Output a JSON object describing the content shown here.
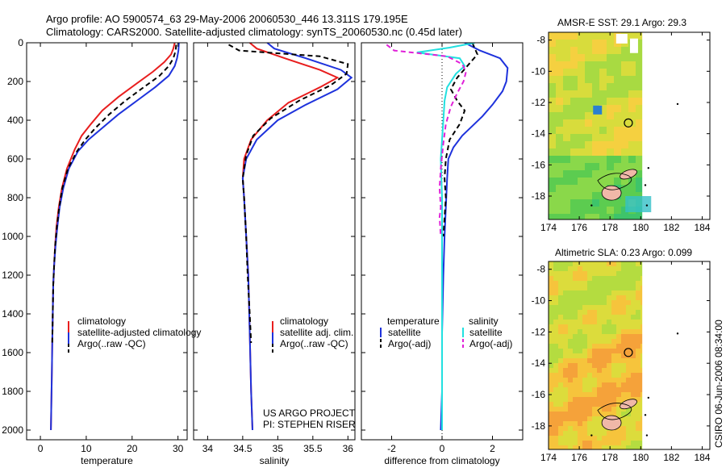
{
  "header": {
    "line1": "Argo profile: AO 5900574_63 29-May-2006 20060530_446 13.311S 179.195E",
    "line2": "Climatology: CARS2000. Satellite-adjusted climatology: synTS_20060530.nc (0.45d later)"
  },
  "credits": {
    "project": "US ARGO PROJECT",
    "pi": "PI: STEPHEN RISER",
    "stamp": "CSIRO 06-Jun-2006 08:34:00"
  },
  "colors": {
    "climatology": "#e81e1e",
    "satellite": "#1e32dc",
    "argo": "#000000",
    "satellite_salinity": "#22e0e0",
    "argo_salinity": "#e020d8"
  },
  "chart_data": [
    {
      "type": "line",
      "id": "temperature",
      "xlabel": "temperature",
      "ylabel": "",
      "xlim": [
        -3,
        32
      ],
      "ylim": [
        2050,
        0
      ],
      "xticks": [
        0,
        10,
        20,
        30
      ],
      "yticks": [
        0,
        200,
        400,
        600,
        800,
        1000,
        1200,
        1400,
        1600,
        1800,
        2000
      ],
      "series": [
        {
          "name": "climatology",
          "style": "solid",
          "color": "#e81e1e",
          "x": [
            29.3,
            29.0,
            28.5,
            27,
            24.5,
            21,
            17,
            13.5,
            11,
            9,
            7.5,
            5.8,
            4.7,
            4.0,
            3.5,
            3.2,
            3.0,
            2.8,
            2.7,
            2.6,
            2.5,
            2.4,
            2.3
          ],
          "y": [
            0,
            30,
            60,
            100,
            150,
            210,
            280,
            350,
            420,
            480,
            550,
            650,
            750,
            850,
            950,
            1050,
            1150,
            1250,
            1400,
            1550,
            1700,
            1850,
            2000
          ]
        },
        {
          "name": "satellite-adjusted climatology",
          "style": "solid",
          "color": "#1e32dc",
          "x": [
            30.2,
            30.1,
            29.8,
            29.3,
            28,
            25,
            21,
            17,
            13.5,
            10.5,
            8.2,
            6.2,
            5.0,
            4.2,
            3.7,
            3.3,
            3.0,
            2.8,
            2.7,
            2.6,
            2.5,
            2.4,
            2.3
          ],
          "y": [
            0,
            40,
            80,
            120,
            170,
            230,
            300,
            370,
            440,
            500,
            560,
            650,
            750,
            850,
            950,
            1050,
            1150,
            1250,
            1400,
            1550,
            1700,
            1850,
            2000
          ]
        },
        {
          "name": "Argo(..raw -QC)",
          "style": "dashed",
          "color": "#000000",
          "x": [
            29.6,
            29.5,
            29.0,
            28,
            26,
            22.5,
            18.5,
            15,
            12,
            9.8,
            8.0,
            6.0,
            4.8,
            4.1,
            3.6,
            3.2,
            3.0,
            2.8,
            2.7,
            2.6
          ],
          "y": [
            10,
            40,
            80,
            120,
            170,
            230,
            300,
            370,
            440,
            500,
            560,
            650,
            750,
            850,
            950,
            1050,
            1150,
            1250,
            1400,
            1550
          ]
        }
      ],
      "legend": {
        "placement": "lower-right",
        "entries": [
          "climatology",
          "satellite-adjusted climatology",
          "Argo(..raw -QC)"
        ]
      }
    },
    {
      "type": "line",
      "id": "salinity",
      "xlabel": "salinity",
      "ylabel": "",
      "xlim": [
        33.8,
        36.1
      ],
      "ylim": [
        2050,
        0
      ],
      "xticks": [
        34,
        34.5,
        35,
        35.5,
        36
      ],
      "xticklabels": [
        "34",
        "34.5",
        "35",
        "35.5",
        "36"
      ],
      "yticks": [
        0,
        200,
        400,
        600,
        800,
        1000,
        1200,
        1400,
        1600,
        1800,
        2000
      ],
      "series": [
        {
          "name": "climatology",
          "style": "solid",
          "color": "#e81e1e",
          "x": [
            34.6,
            34.7,
            35.1,
            35.6,
            35.85,
            35.6,
            35.15,
            34.85,
            34.62,
            34.52,
            34.5,
            34.52,
            34.55,
            34.58,
            34.6,
            34.62,
            34.64
          ],
          "y": [
            0,
            30,
            80,
            140,
            180,
            230,
            310,
            400,
            500,
            600,
            700,
            800,
            1000,
            1200,
            1500,
            1800,
            2000
          ]
        },
        {
          "name": "satellite adj. clim.",
          "style": "solid",
          "color": "#1e32dc",
          "x": [
            34.85,
            34.95,
            35.4,
            35.9,
            36.05,
            35.85,
            35.4,
            35.0,
            34.7,
            34.55,
            34.5,
            34.52,
            34.55,
            34.58,
            34.6,
            34.62,
            34.64
          ],
          "y": [
            0,
            30,
            80,
            140,
            180,
            240,
            320,
            400,
            500,
            600,
            700,
            800,
            1000,
            1200,
            1500,
            1800,
            2000
          ]
        },
        {
          "name": "Argo(..raw -QC)",
          "style": "dashed",
          "color": "#000000",
          "x": [
            34.3,
            34.45,
            35.6,
            36.0,
            35.98,
            35.75,
            35.3,
            34.9,
            34.65,
            34.55,
            34.5,
            34.52,
            34.55,
            34.57,
            34.6,
            34.62
          ],
          "y": [
            10,
            40,
            70,
            110,
            160,
            220,
            300,
            390,
            480,
            580,
            700,
            800,
            1000,
            1200,
            1400,
            1550
          ]
        }
      ],
      "legend": {
        "placement": "lower-right",
        "entries": [
          "climatology",
          "satellite adj. clim.",
          "Argo(..raw -QC)"
        ]
      }
    },
    {
      "type": "line",
      "id": "difference",
      "xlabel": "difference from climatology",
      "ylabel": "",
      "xlim": [
        -3.2,
        3.2
      ],
      "ylim": [
        2050,
        0
      ],
      "xticks": [
        -2,
        0,
        2
      ],
      "yticks": [
        0,
        200,
        400,
        600,
        800,
        1000,
        1200,
        1400,
        1600,
        1800,
        2000
      ],
      "series": [
        {
          "name": "temperature satellite",
          "style": "solid",
          "color": "#1e32dc",
          "x": [
            0.9,
            1.5,
            2.3,
            2.6,
            2.55,
            2.4,
            2.0,
            1.6,
            1.2,
            0.8,
            0.45,
            0.25,
            0.2,
            0.15,
            0.1,
            0.05,
            0.0,
            0.0,
            -0.05
          ],
          "y": [
            0,
            40,
            80,
            130,
            200,
            250,
            320,
            380,
            430,
            480,
            540,
            600,
            700,
            850,
            1000,
            1200,
            1500,
            1800,
            2000
          ]
        },
        {
          "name": "temperature Argo(-adj)",
          "style": "dashed",
          "color": "#000000",
          "x": [
            1.2,
            1.4,
            1.0,
            0.6,
            0.35,
            0.6,
            0.9,
            0.7,
            0.3,
            0.15,
            0.1,
            0.15,
            0.1,
            0.05
          ],
          "y": [
            0,
            60,
            120,
            180,
            240,
            300,
            350,
            420,
            500,
            600,
            700,
            800,
            900,
            1000
          ]
        },
        {
          "name": "salinity satellite",
          "style": "solid",
          "color": "#22e0e0",
          "x": [
            1.3,
            0.3,
            -1.0,
            0.7,
            0.9,
            0.55,
            0.2,
            0.1,
            0.05,
            0.0,
            -0.05,
            0.0,
            0.0,
            0.0,
            0.0,
            0.0
          ],
          "y": [
            0,
            25,
            50,
            80,
            120,
            160,
            230,
            300,
            400,
            500,
            600,
            800,
            1000,
            1300,
            1600,
            2000
          ]
        },
        {
          "name": "salinity Argo(-adj)",
          "style": "dashed",
          "color": "#e020d8",
          "x": [
            -2.2,
            -1.9,
            0.2,
            0.8,
            0.95,
            0.85,
            0.6,
            0.35,
            0.15,
            0.05,
            -0.05,
            -0.1,
            -0.05,
            -0.1,
            -0.05
          ],
          "y": [
            10,
            40,
            70,
            110,
            150,
            200,
            260,
            330,
            420,
            520,
            650,
            750,
            850,
            900,
            1000
          ]
        }
      ],
      "legend": {
        "placement": "lower-center",
        "headers": [
          "temperature",
          "salinity"
        ],
        "entries": [
          "satellite",
          "Argo(-adj)",
          "satellite",
          "Argo(-adj)"
        ]
      }
    },
    {
      "type": "heatmap",
      "id": "sst_map",
      "title": "AMSR-E SST: 29.1 Argo: 29.3",
      "xlim": [
        174,
        184.5
      ],
      "ylim": [
        -19.5,
        -7.5
      ],
      "xticks": [
        174,
        176,
        178,
        180,
        182,
        184
      ],
      "yticks": [
        -8,
        -10,
        -12,
        -14,
        -16,
        -18
      ],
      "profile_location": [
        179.195,
        -13.311
      ]
    },
    {
      "type": "heatmap",
      "id": "sla_map",
      "title": "Altimetric SLA: 0.23 Argo: 0.099",
      "xlim": [
        174,
        184.5
      ],
      "ylim": [
        -19.5,
        -7.5
      ],
      "xticks": [
        174,
        176,
        178,
        180,
        182,
        184
      ],
      "yticks": [
        -8,
        -10,
        -12,
        -14,
        -16,
        -18
      ],
      "profile_location": [
        179.195,
        -13.311
      ]
    }
  ]
}
